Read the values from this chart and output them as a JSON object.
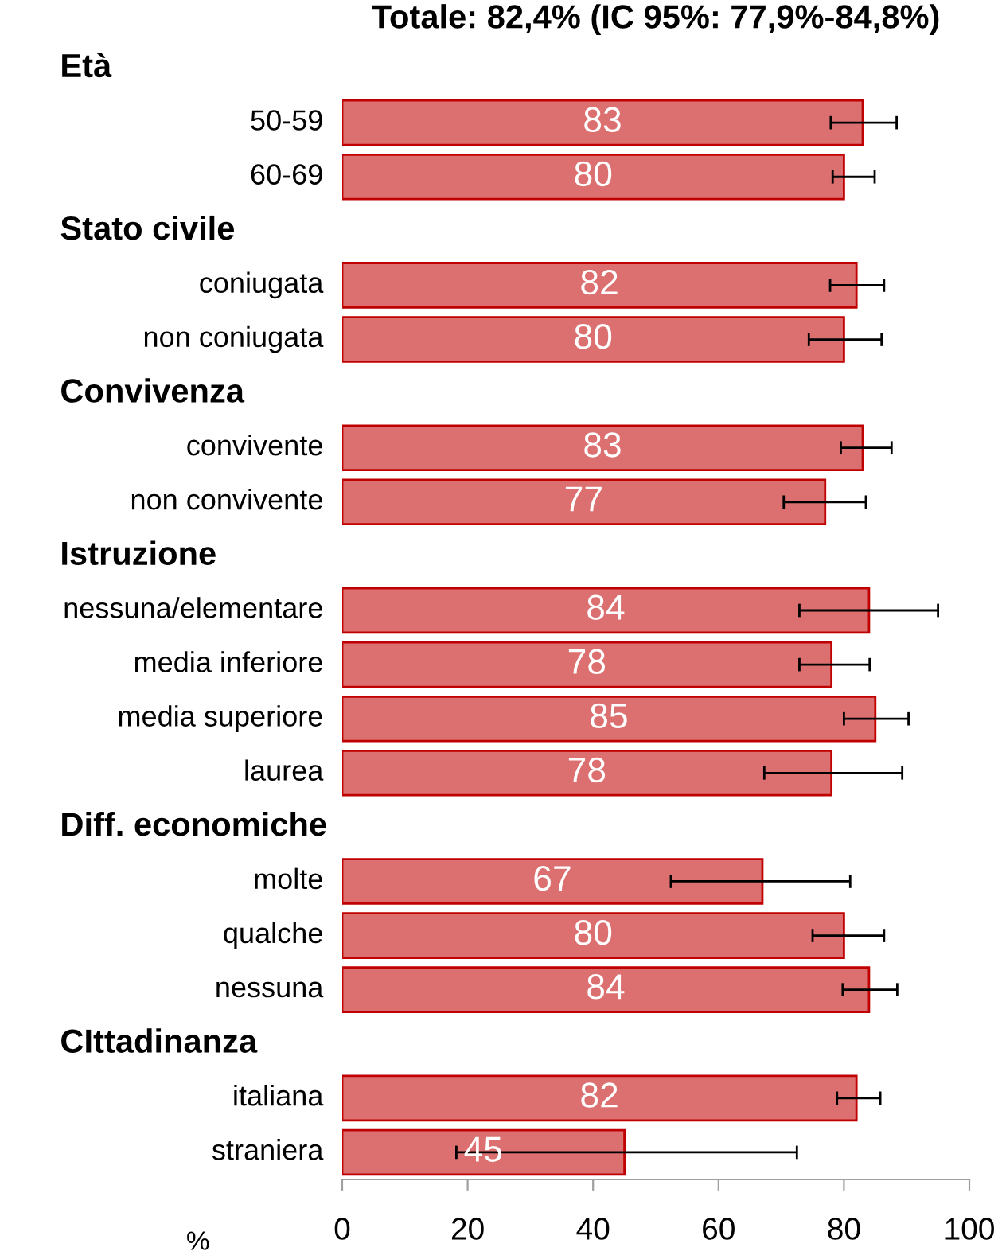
{
  "chart_data": {
    "type": "bar",
    "orientation": "horizontal",
    "title": "Totale: 82,4% (IC 95%: 77,9%-84,8%)",
    "xlabel": "%",
    "categories": [
      null,
      "50-59",
      "60-69",
      null,
      "coniugata",
      "non coniugata",
      null,
      "convivente",
      "non convivente",
      null,
      "nessuna/elementare",
      "media inferiore",
      "media superiore",
      "laurea",
      null,
      "molte",
      "qualche",
      "nessuna",
      null,
      "italiana",
      "straniera"
    ],
    "annotations": [
      "Età",
      "Stato civile",
      "Convivenza",
      "Istruzione",
      "Diff. economiche",
      "CIttadinanza"
    ],
    "values": [
      null,
      83,
      80,
      null,
      82,
      80,
      null,
      83,
      77,
      null,
      84,
      78,
      85,
      78,
      null,
      67,
      80,
      84,
      null,
      82,
      45
    ],
    "errors": [
      null,
      [
        77.9,
        88.4
      ],
      [
        78.2,
        84.9
      ],
      null,
      [
        77.8,
        86.4
      ],
      [
        74.4,
        86.0
      ],
      null,
      [
        79.5,
        87.6
      ],
      [
        70.4,
        83.5
      ],
      null,
      [
        72.9,
        95.0
      ],
      [
        72.9,
        84.1
      ],
      [
        80.0,
        90.3
      ],
      [
        67.3,
        89.3
      ],
      null,
      [
        52.4,
        81.0
      ],
      [
        75.0,
        86.4
      ],
      [
        79.8,
        88.5
      ],
      null,
      [
        78.9,
        85.8
      ],
      [
        18.2,
        72.5
      ]
    ],
    "color": "#dc7070",
    "xlim": [
      0,
      100
    ],
    "xticks": [
      0,
      20,
      40,
      60,
      80,
      100
    ],
    "data_labels": true,
    "grid": false
  }
}
